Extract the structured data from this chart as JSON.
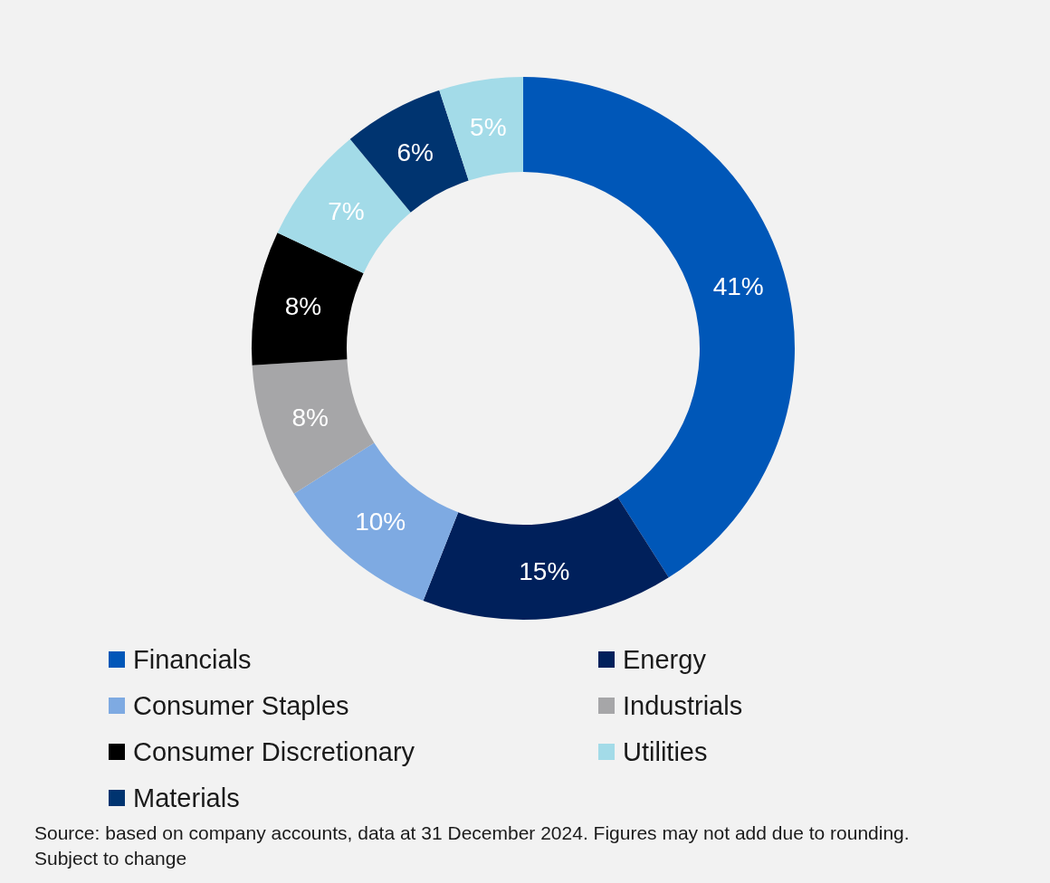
{
  "chart_data": {
    "type": "donut",
    "categories": [
      "Financials",
      "Energy",
      "Consumer Staples",
      "Industrials",
      "Consumer Discretionary",
      "Utilities",
      "Materials",
      null
    ],
    "values": [
      41,
      15,
      10,
      8,
      8,
      7,
      6,
      5
    ],
    "value_labels": [
      "41%",
      "15%",
      "10%",
      "8%",
      "8%",
      "7%",
      "6%",
      "5%"
    ],
    "colors": [
      "#0057b8",
      "#00205b",
      "#7eaae2",
      "#a6a6a8",
      "#000000",
      "#a3dbe8",
      "#003470",
      "#a3dbe8"
    ],
    "legend": "bottom",
    "annotations": [
      "Source: based on company accounts, data at 31 December 2024. Figures may not add due to rounding. Subject to change"
    ]
  }
}
